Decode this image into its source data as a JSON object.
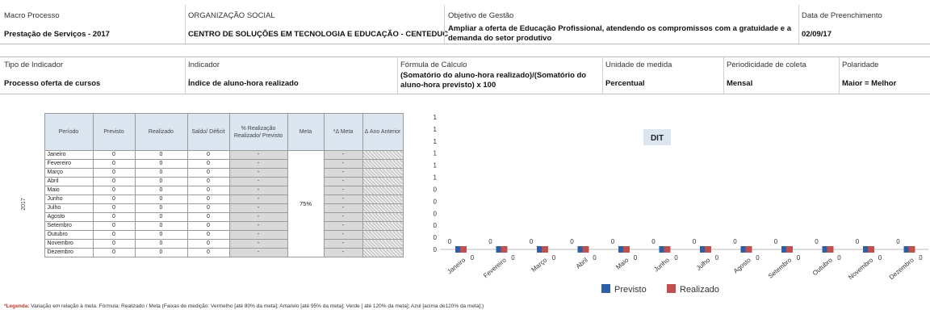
{
  "header": {
    "macro_processo": {
      "label": "Macro Processo",
      "value": "Prestação de Serviços - 2017"
    },
    "organizacao": {
      "label": "ORGANIZAÇÃO SOCIAL",
      "value": "CENTRO DE SOLUÇÕES EM TECNOLOGIA E EDUCAÇÃO - CENTEDUC"
    },
    "objetivo": {
      "label": "Objetivo de Gestão",
      "value": "Ampliar a oferta de Educação Profissional, atendendo os compromissos com a gratuidade e a demanda do setor produtivo"
    },
    "data_preenchimento": {
      "label": "Data de Preenchimento",
      "value": "02/09/17"
    }
  },
  "indicator": {
    "tipo": {
      "label": "Tipo de Indicador",
      "value": "Processo oferta de cursos"
    },
    "indicador": {
      "label": "Indicador",
      "value": "Índice de aluno-hora realizado"
    },
    "formula": {
      "label": "Fórmula  de Cálculo",
      "value": "(Somatório do aluno-hora realizado)/(Somatório do aluno-hora previsto) x 100"
    },
    "unidade": {
      "label": "Unidade de medida",
      "value": "Percentual"
    },
    "periodicidade": {
      "label": "Periodicidade de coleta",
      "value": "Mensal"
    },
    "polaridade": {
      "label": "Polaridade",
      "value": "Maior = Melhor"
    }
  },
  "table": {
    "headers": [
      "Período",
      "Previsto",
      "Realizado",
      "Saldo/ Déficit",
      "% Realização Realizado/ Previsto",
      "Meta",
      "*Δ Meta",
      "Δ Ano Anterior"
    ],
    "year": "2017",
    "meta": "75%",
    "rows": [
      {
        "mes": "Janeiro",
        "previsto": "0",
        "realizado": "0",
        "saldo": "0",
        "realizacao": "-",
        "delta_meta": "-"
      },
      {
        "mes": "Fevereiro",
        "previsto": "0",
        "realizado": "0",
        "saldo": "0",
        "realizacao": "-",
        "delta_meta": "-"
      },
      {
        "mes": "Março",
        "previsto": "0",
        "realizado": "0",
        "saldo": "0",
        "realizacao": "-",
        "delta_meta": "-"
      },
      {
        "mes": "Abril",
        "previsto": "0",
        "realizado": "0",
        "saldo": "0",
        "realizacao": "-",
        "delta_meta": "-"
      },
      {
        "mes": "Maio",
        "previsto": "0",
        "realizado": "0",
        "saldo": "0",
        "realizacao": "-",
        "delta_meta": "-"
      },
      {
        "mes": "Junho",
        "previsto": "0",
        "realizado": "0",
        "saldo": "0",
        "realizacao": "-",
        "delta_meta": "-"
      },
      {
        "mes": "Julho",
        "previsto": "0",
        "realizado": "0",
        "saldo": "0",
        "realizacao": "-",
        "delta_meta": "-"
      },
      {
        "mes": "Agosto",
        "previsto": "0",
        "realizado": "0",
        "saldo": "0",
        "realizacao": "-",
        "delta_meta": "-"
      },
      {
        "mes": "Setembro",
        "previsto": "0",
        "realizado": "0",
        "saldo": "0",
        "realizacao": "-",
        "delta_meta": "-"
      },
      {
        "mes": "Outubro",
        "previsto": "0",
        "realizado": "0",
        "saldo": "0",
        "realizacao": "-",
        "delta_meta": "-"
      },
      {
        "mes": "Novembro",
        "previsto": "0",
        "realizado": "0",
        "saldo": "0",
        "realizacao": "-",
        "delta_meta": "-"
      },
      {
        "mes": "Dezembro",
        "previsto": "0",
        "realizado": "0",
        "saldo": "0",
        "realizacao": "-",
        "delta_meta": "-"
      }
    ]
  },
  "chart_data": {
    "type": "scatter",
    "title": "DIT",
    "categories": [
      "Janeiro",
      "Fevereiro",
      "Março",
      "Abril",
      "Maio",
      "Junho",
      "Julho",
      "Agosto",
      "Setembro",
      "Outubro",
      "Novembro",
      "Dezembro"
    ],
    "series": [
      {
        "name": "Previsto",
        "color": "#2e5fa6",
        "values": [
          0,
          0,
          0,
          0,
          0,
          0,
          0,
          0,
          0,
          0,
          0,
          0
        ]
      },
      {
        "name": "Realizado",
        "color": "#c0504d",
        "values": [
          0,
          0,
          0,
          0,
          0,
          0,
          0,
          0,
          0,
          0,
          0,
          0
        ]
      }
    ],
    "y_tick_labels": [
      "1",
      "1",
      "1",
      "1",
      "1",
      "1",
      "0",
      "0",
      "0",
      "0",
      "0",
      "0"
    ],
    "legend_position": "bottom",
    "grid": false
  },
  "footnote": {
    "bold": "*Legenda:",
    "text": " Variação em relação à meta. Fórmula: Realizado / Meta (Faixas de medição: Vermelho [até 80% da meta]; Amarelo [até 95% da meta]; Verde [ até 120% da meta]; Azul [acima de120% da meta];)"
  }
}
